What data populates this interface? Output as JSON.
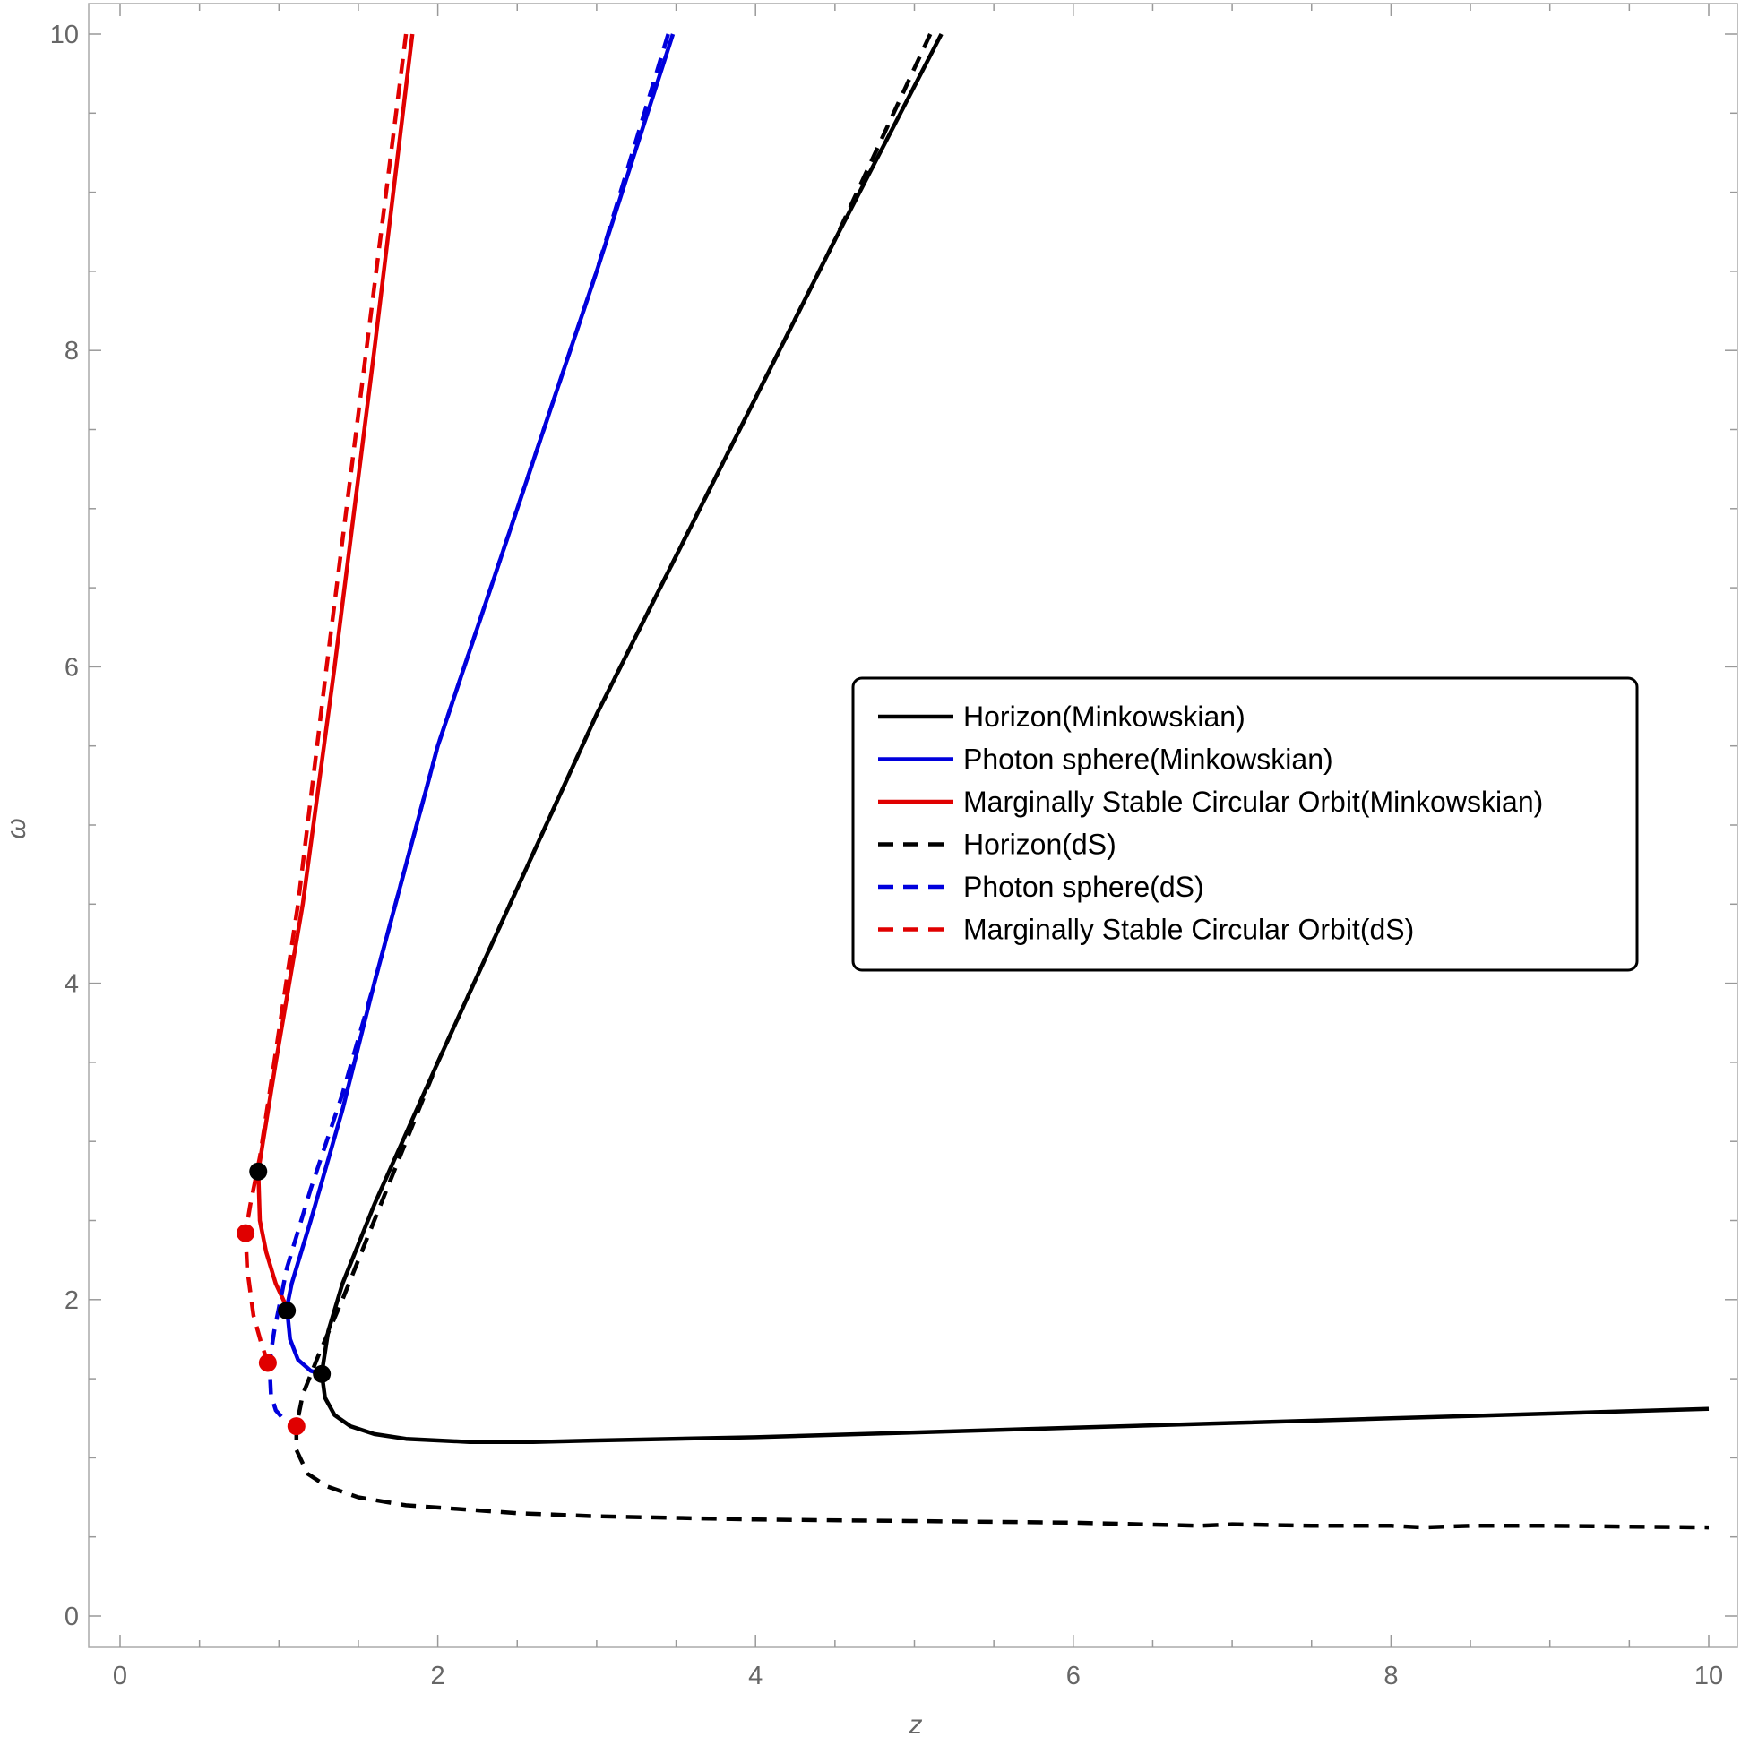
{
  "chart_data": {
    "type": "line",
    "title": "",
    "xlabel": "z",
    "ylabel": "ω",
    "xlim": [
      -0.2,
      10.2
    ],
    "ylim": [
      -0.2,
      10.1
    ],
    "xticks": [
      0,
      2,
      4,
      6,
      8,
      10
    ],
    "yticks": [
      0,
      2,
      4,
      6,
      8,
      10
    ],
    "xtick_labels": [
      "0",
      "2",
      "4",
      "6",
      "8",
      "10"
    ],
    "ytick_labels": [
      "0",
      "2",
      "4",
      "6",
      "8",
      "10"
    ],
    "legend_position": "right-center",
    "grid": false,
    "series": [
      {
        "name": "Horizon(Minkowskian)",
        "color": "#000000",
        "dash": "solid",
        "points": [
          [
            5.17,
            10.0
          ],
          [
            4.5,
            8.7
          ],
          [
            4.0,
            7.7
          ],
          [
            3.5,
            6.7
          ],
          [
            3.0,
            5.7
          ],
          [
            2.5,
            4.6
          ],
          [
            2.0,
            3.5
          ],
          [
            1.6,
            2.6
          ],
          [
            1.4,
            2.1
          ],
          [
            1.31,
            1.8
          ],
          [
            1.28,
            1.6
          ],
          [
            1.27,
            1.53
          ],
          [
            1.29,
            1.38
          ],
          [
            1.35,
            1.27
          ],
          [
            1.45,
            1.2
          ],
          [
            1.6,
            1.15
          ],
          [
            1.8,
            1.12
          ],
          [
            2.2,
            1.1
          ],
          [
            2.6,
            1.1
          ],
          [
            3.0,
            1.11
          ],
          [
            4.0,
            1.13
          ],
          [
            5.0,
            1.16
          ],
          [
            6.0,
            1.19
          ],
          [
            7.0,
            1.22
          ],
          [
            8.0,
            1.25
          ],
          [
            9.0,
            1.28
          ],
          [
            10.0,
            1.31
          ]
        ]
      },
      {
        "name": "Photon sphere(Minkowskian)",
        "color": "#0000dd",
        "dash": "solid",
        "points": [
          [
            3.48,
            10.0
          ],
          [
            3.0,
            8.5
          ],
          [
            2.5,
            7.0
          ],
          [
            2.0,
            5.5
          ],
          [
            1.6,
            4.0
          ],
          [
            1.4,
            3.2
          ],
          [
            1.2,
            2.5
          ],
          [
            1.08,
            2.1
          ],
          [
            1.05,
            1.95
          ],
          [
            1.07,
            1.75
          ],
          [
            1.12,
            1.62
          ],
          [
            1.2,
            1.55
          ],
          [
            1.27,
            1.53
          ]
        ]
      },
      {
        "name": "Marginally Stable Circular Orbit(Minkowskian)",
        "color": "#e00000",
        "dash": "solid",
        "points": [
          [
            1.84,
            10.0
          ],
          [
            1.6,
            8.0
          ],
          [
            1.35,
            6.0
          ],
          [
            1.15,
            4.5
          ],
          [
            0.98,
            3.5
          ],
          [
            0.9,
            3.0
          ],
          [
            0.87,
            2.81
          ],
          [
            0.88,
            2.5
          ],
          [
            0.92,
            2.3
          ],
          [
            0.98,
            2.1
          ],
          [
            1.05,
            1.95
          ]
        ]
      },
      {
        "name": "Horizon(dS)",
        "color": "#000000",
        "dash": "dashed",
        "points": [
          [
            5.1,
            10.0
          ],
          [
            4.5,
            8.7
          ],
          [
            4.0,
            7.7
          ],
          [
            3.5,
            6.7
          ],
          [
            3.0,
            5.7
          ],
          [
            2.5,
            4.6
          ],
          [
            2.0,
            3.5
          ],
          [
            1.6,
            2.5
          ],
          [
            1.4,
            2.0
          ],
          [
            1.25,
            1.65
          ],
          [
            1.15,
            1.4
          ],
          [
            1.11,
            1.2
          ],
          [
            1.11,
            1.05
          ],
          [
            1.18,
            0.9
          ],
          [
            1.3,
            0.82
          ],
          [
            1.5,
            0.75
          ],
          [
            1.8,
            0.7
          ],
          [
            2.5,
            0.65
          ],
          [
            3.0,
            0.63
          ],
          [
            4.0,
            0.61
          ],
          [
            5.0,
            0.6
          ],
          [
            6.0,
            0.59
          ],
          [
            6.8,
            0.57
          ],
          [
            7.0,
            0.58
          ],
          [
            7.5,
            0.57
          ],
          [
            8.0,
            0.57
          ],
          [
            8.2,
            0.56
          ],
          [
            8.5,
            0.57
          ],
          [
            9.0,
            0.57
          ],
          [
            10.0,
            0.56
          ]
        ]
      },
      {
        "name": "Photon sphere(dS)",
        "color": "#0000dd",
        "dash": "dashed",
        "points": [
          [
            3.45,
            10.0
          ],
          [
            3.0,
            8.5
          ],
          [
            2.5,
            7.0
          ],
          [
            2.0,
            5.5
          ],
          [
            1.6,
            4.0
          ],
          [
            1.4,
            3.3
          ],
          [
            1.2,
            2.7
          ],
          [
            1.05,
            2.2
          ],
          [
            0.97,
            1.8
          ],
          [
            0.94,
            1.6
          ],
          [
            0.95,
            1.4
          ],
          [
            0.98,
            1.3
          ],
          [
            1.05,
            1.22
          ],
          [
            1.11,
            1.2
          ]
        ]
      },
      {
        "name": "Marginally Stable Circular Orbit(dS)",
        "color": "#e00000",
        "dash": "dashed",
        "points": [
          [
            1.8,
            10.0
          ],
          [
            1.55,
            8.0
          ],
          [
            1.3,
            6.0
          ],
          [
            1.12,
            4.5
          ],
          [
            0.97,
            3.5
          ],
          [
            0.88,
            2.9
          ],
          [
            0.82,
            2.6
          ],
          [
            0.79,
            2.42
          ],
          [
            0.8,
            2.2
          ],
          [
            0.84,
            1.9
          ],
          [
            0.89,
            1.72
          ],
          [
            0.93,
            1.6
          ]
        ]
      }
    ],
    "markers": [
      {
        "x": 0.87,
        "y": 2.81,
        "color": "#000000"
      },
      {
        "x": 1.05,
        "y": 1.93,
        "color": "#000000"
      },
      {
        "x": 1.27,
        "y": 1.53,
        "color": "#000000"
      },
      {
        "x": 0.79,
        "y": 2.42,
        "color": "#e00000"
      },
      {
        "x": 0.93,
        "y": 1.6,
        "color": "#e00000"
      },
      {
        "x": 1.11,
        "y": 1.2,
        "color": "#e00000"
      }
    ]
  }
}
